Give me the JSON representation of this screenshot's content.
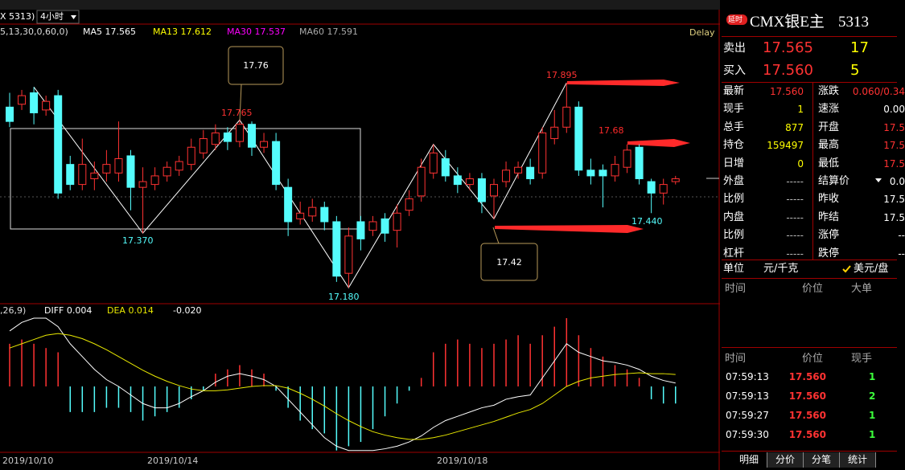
{
  "header": {
    "symbol": "X  5313)",
    "period": "4小时"
  },
  "chart_data": [
    {
      "type": "candlestick",
      "legend": [
        {
          "name": "5,13,30,0,60,0)",
          "color": "#dddddd"
        },
        {
          "name": "MA5 17.565",
          "color": "#ffffff"
        },
        {
          "name": "MA13 17.612",
          "color": "#ffff00"
        },
        {
          "name": "MA30 17.537",
          "color": "#ff00ff"
        },
        {
          "name": "MA60 17.591",
          "color": "#aaaaaa"
        }
      ],
      "delay_label": "Delay",
      "up_color": "#ff3232",
      "down_color": "#54fcfc",
      "open": [
        17.81,
        17.82,
        17.86,
        17.8,
        17.85,
        17.61,
        17.54,
        17.56,
        17.58,
        17.58,
        17.64,
        17.53,
        17.54,
        17.57,
        17.59,
        17.61,
        17.65,
        17.68,
        17.72,
        17.69,
        17.75,
        17.67,
        17.69,
        17.53,
        17.42,
        17.43,
        17.46,
        17.41,
        17.23,
        17.41,
        17.38,
        17.42,
        17.38,
        17.45,
        17.5,
        17.58,
        17.63,
        17.57,
        17.54,
        17.56,
        17.5,
        17.55,
        17.58,
        17.6,
        17.58,
        17.7,
        17.74,
        17.81,
        17.59,
        17.59,
        17.57,
        17.6,
        17.67,
        17.55,
        17.51,
        17.55
      ],
      "high": [
        17.86,
        17.87,
        17.88,
        17.85,
        17.87,
        17.64,
        17.7,
        17.62,
        17.66,
        17.76,
        17.66,
        17.6,
        17.6,
        17.62,
        17.64,
        17.7,
        17.73,
        17.75,
        17.74,
        17.765,
        17.76,
        17.72,
        17.72,
        17.56,
        17.48,
        17.49,
        17.48,
        17.43,
        17.39,
        17.43,
        17.43,
        17.44,
        17.47,
        17.52,
        17.63,
        17.68,
        17.66,
        17.6,
        17.58,
        17.58,
        17.56,
        17.62,
        17.62,
        17.63,
        17.74,
        17.8,
        17.895,
        17.83,
        17.63,
        17.61,
        17.64,
        17.68,
        17.68,
        17.56,
        17.56,
        17.57
      ],
      "low": [
        17.74,
        17.8,
        17.75,
        17.78,
        17.49,
        17.52,
        17.52,
        17.52,
        17.55,
        17.55,
        17.45,
        17.37,
        17.52,
        17.55,
        17.57,
        17.59,
        17.63,
        17.66,
        17.66,
        17.67,
        17.64,
        17.65,
        17.52,
        17.36,
        17.4,
        17.41,
        17.38,
        17.2,
        17.18,
        17.31,
        17.36,
        17.34,
        17.32,
        17.43,
        17.48,
        17.56,
        17.55,
        17.51,
        17.52,
        17.44,
        17.42,
        17.53,
        17.56,
        17.54,
        17.56,
        17.68,
        17.72,
        17.57,
        17.54,
        17.46,
        17.55,
        17.58,
        17.54,
        17.44,
        17.47,
        17.54
      ],
      "close": [
        17.76,
        17.85,
        17.79,
        17.83,
        17.51,
        17.54,
        17.61,
        17.58,
        17.61,
        17.63,
        17.53,
        17.55,
        17.57,
        17.6,
        17.62,
        17.67,
        17.7,
        17.72,
        17.69,
        17.75,
        17.67,
        17.69,
        17.54,
        17.41,
        17.44,
        17.46,
        17.41,
        17.22,
        17.36,
        17.35,
        17.41,
        17.37,
        17.44,
        17.49,
        17.6,
        17.65,
        17.57,
        17.54,
        17.56,
        17.48,
        17.54,
        17.59,
        17.6,
        17.56,
        17.72,
        17.74,
        17.81,
        17.59,
        17.57,
        17.57,
        17.61,
        17.66,
        17.56,
        17.51,
        17.54,
        17.56
      ],
      "annotations": [
        {
          "text": "17.370",
          "color": "#54fcfc"
        },
        {
          "text": "17.765",
          "color": "#ff3232"
        },
        {
          "text": "17.180",
          "color": "#54fcfc"
        },
        {
          "text": "17.895",
          "color": "#ff3232"
        },
        {
          "text": "17.440",
          "color": "#54fcfc"
        },
        {
          "text": "17.76",
          "color": "#ffffff"
        },
        {
          "text": "17.42",
          "color": "#ffffff"
        },
        {
          "text": "17.68",
          "color": "#ff2a2a"
        }
      ],
      "x_labels": [
        "2019/10/10",
        "2019/10/14",
        "2019/10/18"
      ]
    },
    {
      "type": "macd",
      "title": ",26,9)",
      "series": [
        {
          "name": "DIFF 0.004",
          "color": "#ffffff",
          "values": [
            0.065,
            0.075,
            0.08,
            0.08,
            0.07,
            0.05,
            0.035,
            0.02,
            0.008,
            0.0,
            -0.01,
            -0.02,
            -0.025,
            -0.025,
            -0.02,
            -0.012,
            -0.005,
            0.005,
            0.012,
            0.015,
            0.012,
            0.008,
            0.0,
            -0.015,
            -0.03,
            -0.045,
            -0.06,
            -0.07,
            -0.075,
            -0.075,
            -0.075,
            -0.073,
            -0.07,
            -0.065,
            -0.058,
            -0.048,
            -0.04,
            -0.035,
            -0.03,
            -0.025,
            -0.022,
            -0.015,
            -0.012,
            -0.01,
            0.01,
            0.03,
            0.05,
            0.04,
            0.035,
            0.03,
            0.028,
            0.025,
            0.02,
            0.012,
            0.007,
            0.004
          ]
        },
        {
          "name": "DEA 0.014",
          "color": "#e8e800",
          "values": [
            0.045,
            0.05,
            0.055,
            0.06,
            0.062,
            0.06,
            0.056,
            0.05,
            0.043,
            0.035,
            0.027,
            0.019,
            0.012,
            0.006,
            0.001,
            -0.003,
            -0.005,
            -0.005,
            -0.004,
            -0.002,
            0.0,
            0.001,
            0.001,
            -0.002,
            -0.008,
            -0.015,
            -0.023,
            -0.032,
            -0.04,
            -0.047,
            -0.053,
            -0.057,
            -0.06,
            -0.062,
            -0.062,
            -0.06,
            -0.057,
            -0.053,
            -0.049,
            -0.045,
            -0.041,
            -0.036,
            -0.031,
            -0.027,
            -0.02,
            -0.01,
            0.0,
            0.006,
            0.01,
            0.012,
            0.014,
            0.015,
            0.016,
            0.015,
            0.015,
            0.014
          ]
        }
      ],
      "histogram": {
        "name": "-0.020",
        "up_color": "#ff3232",
        "down_color": "#54fcfc",
        "values": [
          0.05,
          0.055,
          0.05,
          0.045,
          0.04,
          -0.03,
          -0.03,
          -0.03,
          -0.025,
          -0.025,
          -0.03,
          -0.04,
          -0.035,
          -0.03,
          -0.025,
          -0.015,
          -0.005,
          0.015,
          0.02,
          0.025,
          0.02,
          0.015,
          -0.005,
          -0.025,
          -0.04,
          -0.05,
          -0.055,
          -0.075,
          -0.07,
          -0.065,
          -0.05,
          -0.035,
          -0.02,
          -0.005,
          0.01,
          0.04,
          0.05,
          0.055,
          0.05,
          0.045,
          0.05,
          0.055,
          0.06,
          0.05,
          0.06,
          0.07,
          0.08,
          0.06,
          0.045,
          0.035,
          0.025,
          0.02,
          0.01,
          -0.015,
          -0.02,
          -0.02
        ]
      }
    }
  ],
  "panel": {
    "badge": "延时",
    "title": "CMX银E主",
    "code": "5313",
    "sell": {
      "label": "卖出",
      "price": "17.565",
      "qty": "17"
    },
    "buy": {
      "label": "买入",
      "price": "17.560",
      "qty": "5"
    },
    "stats": [
      [
        "最新",
        "17.560",
        "涨跌",
        "0.060/0.34"
      ],
      [
        "现手",
        "1",
        "速涨",
        "0.00"
      ],
      [
        "总手",
        "877",
        "开盘",
        "17.5"
      ],
      [
        "持仓",
        "159497",
        "最高",
        "17.5"
      ],
      [
        "日增",
        "0",
        "最低",
        "17.5"
      ],
      [
        "外盘",
        "-----",
        "结算价",
        "0.0"
      ],
      [
        "比例",
        "-----",
        "昨收",
        "17.5"
      ],
      [
        "内盘",
        "-----",
        "昨结",
        "17.5"
      ],
      [
        "比例",
        "-----",
        "涨停",
        "--"
      ],
      [
        "杠杆",
        "-----",
        "跌停",
        "--"
      ]
    ],
    "unit": [
      "单位",
      "元/千克",
      "美元/盘"
    ],
    "big_orders": {
      "headers": [
        "时间",
        "价位",
        "大单"
      ]
    },
    "trades": {
      "headers": [
        "时间",
        "价位",
        "现手"
      ],
      "rows": [
        [
          "07:59:13",
          "17.560",
          "1"
        ],
        [
          "07:59:13",
          "17.560",
          "2"
        ],
        [
          "07:59:27",
          "17.560",
          "1"
        ],
        [
          "07:59:30",
          "17.560",
          "1"
        ]
      ]
    },
    "tabs": [
      "明细",
      "分价",
      "分笔",
      "统计"
    ]
  }
}
